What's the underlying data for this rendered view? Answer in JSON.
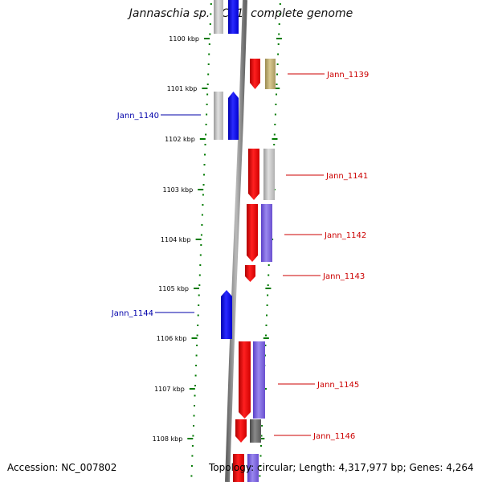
{
  "title": "Jannaschia sp. CCS1, complete genome",
  "footer": {
    "accession": "Accession: NC_007802",
    "topology": "Topology: circular; Length: 4,317,977 bp; Genes: 4,264"
  },
  "kbp_ticks": [
    "1100 kbp",
    "1101 kbp",
    "1102 kbp",
    "1103 kbp",
    "1104 kbp",
    "1105 kbp",
    "1106 kbp",
    "1107 kbp",
    "1108 kbp"
  ],
  "genes": [
    {
      "label": "Jann_1139",
      "strand": "+",
      "color": "#cc0000"
    },
    {
      "label": "Jann_1140",
      "strand": "-",
      "color": "#0000aa"
    },
    {
      "label": "Jann_1141",
      "strand": "+",
      "color": "#cc0000"
    },
    {
      "label": "Jann_1142",
      "strand": "+",
      "color": "#cc0000"
    },
    {
      "label": "Jann_1143",
      "strand": "+",
      "color": "#cc0000"
    },
    {
      "label": "Jann_1144",
      "strand": "-",
      "color": "#0000aa"
    },
    {
      "label": "Jann_1145",
      "strand": "+",
      "color": "#cc0000"
    },
    {
      "label": "Jann_1146",
      "strand": "+",
      "color": "#cc0000"
    }
  ]
}
